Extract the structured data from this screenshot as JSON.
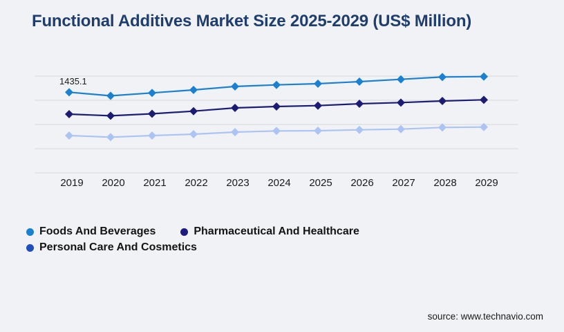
{
  "chart_data": {
    "type": "line",
    "title": "Functional Additives Market Size 2025-2029 (US$ Million)",
    "x": [
      "2019",
      "2020",
      "2021",
      "2022",
      "2023",
      "2024",
      "2025",
      "2026",
      "2027",
      "2028",
      "2029"
    ],
    "series": [
      {
        "name": "Foods And Beverages",
        "line_color": "#1a80d0",
        "legend_color": "#1a80d0",
        "values": [
          1435.1,
          1371.2,
          1422.8,
          1475.7,
          1537.2,
          1565.5,
          1586.4,
          1623.3,
          1663.9,
          1705.7,
          1713.1
        ]
      },
      {
        "name": "Pharmaceutical And Healthcare",
        "line_color": "#1c1c75",
        "legend_color": "#1c1c80",
        "values": [
          1045.3,
          1015.8,
          1051.5,
          1098.2,
          1156.0,
          1180.6,
          1196.6,
          1229.8,
          1250.7,
          1279.0,
          1299.9
        ]
      },
      {
        "name": "Personal Care And Cosmetics",
        "line_color": "#abc4f4",
        "legend_color": "#1f4fba",
        "values": [
          664.1,
          635.8,
          664.1,
          688.7,
          725.6,
          746.5,
          750.2,
          766.2,
          778.5,
          808.0,
          815.0
        ]
      }
    ],
    "annotation": {
      "text": "1435.1",
      "series_index": 0,
      "x_index": 0
    },
    "ylim": [
      0,
      1722
    ],
    "grid": true,
    "gridline_count": 5,
    "grid_color": "#d8d8d8",
    "tick_label_color": "#1a1a1a",
    "y_axis_labels_visible": false,
    "legend_position": "bottom-left",
    "marker_shape": "diamond"
  },
  "footer": {
    "source": "source: www.technavio.com"
  }
}
